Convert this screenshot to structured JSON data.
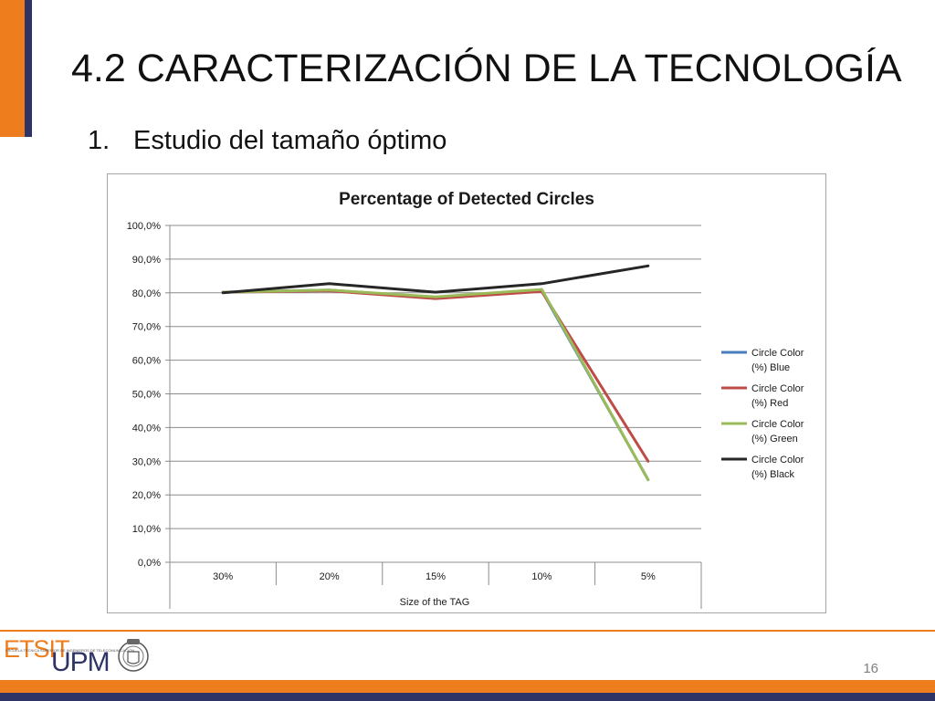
{
  "slide": {
    "title": "4.2   CARACTERIZACIÓN DE LA TECNOLOGÍA",
    "subtitle_number": "1.",
    "subtitle_text": "Estudio del tamaño óptimo",
    "page_number": "16"
  },
  "branding": {
    "logo_top": "ETSIT",
    "logo_bottom": "UPM",
    "logo_fine_print": "ESCUELA TÉCNICA SUPERIOR DE INGENIEROS DE TELECOMUNICACIÓN",
    "accent_color": "#ee7d1e",
    "navy_color": "#2e3566"
  },
  "chart_data": {
    "type": "line",
    "title": "Percentage of Detected Circles",
    "xlabel": "Size of the TAG",
    "ylabel": "",
    "categories": [
      "30%",
      "20%",
      "15%",
      "10%",
      "5%"
    ],
    "y_ticks": [
      "0,0%",
      "10,0%",
      "20,0%",
      "30,0%",
      "40,0%",
      "50,0%",
      "60,0%",
      "70,0%",
      "80,0%",
      "90,0%",
      "100,0%"
    ],
    "ylim": [
      0,
      100
    ],
    "grid": true,
    "legend_position": "right",
    "series": [
      {
        "name": "Circle Color (%) Blue",
        "legend_line1": "Circle Color",
        "legend_line2": "(%) Blue",
        "color": "#4a7ebb",
        "values": [
          80.2,
          80.8,
          78.5,
          80.6,
          24.5
        ]
      },
      {
        "name": "Circle Color (%) Red",
        "legend_line1": "Circle Color",
        "legend_line2": "(%) Red",
        "color": "#be4b48",
        "values": [
          80.2,
          80.6,
          78.3,
          80.4,
          30.0
        ]
      },
      {
        "name": "Circle Color (%) Green",
        "legend_line1": "Circle Color",
        "legend_line2": "(%) Green",
        "color": "#9bbb59",
        "values": [
          80.2,
          80.8,
          78.8,
          81.0,
          24.5
        ]
      },
      {
        "name": "Circle Color (%) Black",
        "legend_line1": "Circle Color",
        "legend_line2": "(%) Black",
        "color": "#262626",
        "values": [
          80.0,
          82.7,
          80.2,
          82.7,
          88.0
        ]
      }
    ]
  }
}
